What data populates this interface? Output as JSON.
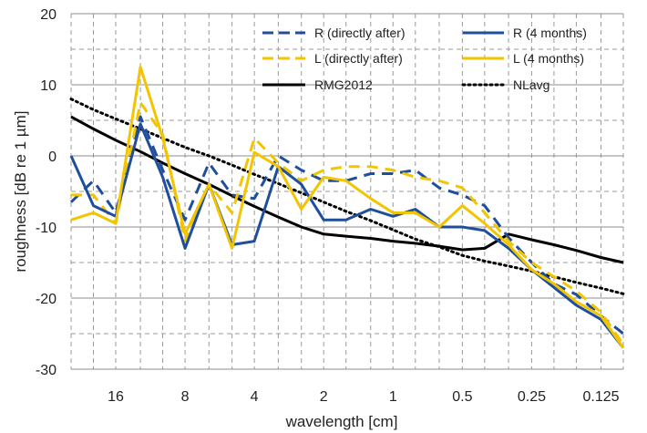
{
  "chart_data": {
    "type": "line",
    "xlabel": "wavelength [cm]",
    "ylabel": "roughness [dB re 1 µm]",
    "ylim": [
      -30,
      20
    ],
    "yticks": [
      20,
      10,
      0,
      -10,
      -20,
      -30
    ],
    "x_scale": "log",
    "x_direction": "decreasing",
    "xlim": [
      25,
      0.1
    ],
    "xtick_labels": [
      "16",
      "8",
      "4",
      "2",
      "1",
      "0.5",
      "0.25",
      "0.125"
    ],
    "xticks": [
      16,
      8,
      4,
      2,
      1,
      0.5,
      0.25,
      0.125
    ],
    "x": [
      25,
      20,
      16,
      12.5,
      10,
      8,
      6.3,
      5,
      4,
      3.15,
      2.5,
      2,
      1.6,
      1.25,
      1,
      0.8,
      0.63,
      0.5,
      0.4,
      0.315,
      0.25,
      0.2,
      0.16,
      0.125,
      0.1
    ],
    "grid": {
      "horizontal_major": "solid",
      "horizontal_minor": "dashed",
      "vertical": "dashed"
    },
    "legend_position": "top-right",
    "series": [
      {
        "name": "R (directly after)",
        "color": "#1F4E9C",
        "style": "dashed",
        "values": [
          -6.5,
          -3.5,
          -8,
          5.5,
          -2,
          -9,
          -1,
          -5.5,
          -6,
          0,
          -2,
          -3.5,
          -3.5,
          -2.5,
          -2.5,
          -2,
          -4.5,
          -5.5,
          -7,
          -11.5,
          -15,
          -18,
          -19.5,
          -22.5,
          -25
        ]
      },
      {
        "name": "R (4 months)",
        "color": "#1F4E9C",
        "style": "solid",
        "values": [
          0,
          -7,
          -8.5,
          4.5,
          -3,
          -13,
          -4,
          -12.5,
          -12,
          -1.5,
          -4,
          -9,
          -9,
          -7.5,
          -8.5,
          -7.5,
          -10,
          -10,
          -10.5,
          -13,
          -16,
          -18.5,
          -21,
          -23,
          -27
        ]
      },
      {
        "name": "L (directly after)",
        "color": "#F2C500",
        "style": "dashed",
        "values": [
          -5.5,
          -5.5,
          -9.5,
          7.5,
          3,
          -12,
          -4,
          -8,
          2.5,
          -1,
          -3.5,
          -2,
          -1.5,
          -1.5,
          -2,
          -3,
          -3.5,
          -4.5,
          -8,
          -12,
          -15,
          -17,
          -19,
          -22,
          -26.5
        ]
      },
      {
        "name": "L (4 months)",
        "color": "#F2C500",
        "style": "solid",
        "values": [
          -9,
          -8,
          -9.5,
          12.5,
          2.5,
          -11,
          -4,
          -13,
          0.5,
          -1.5,
          -7.5,
          -3,
          -3.5,
          -6,
          -8,
          -8,
          -10,
          -7,
          -9.5,
          -12.5,
          -16,
          -18,
          -20.5,
          -22.5,
          -27
        ]
      },
      {
        "name": "RMG2012",
        "color": "#000000",
        "style": "solid",
        "values": [
          5.5,
          3.8,
          2.2,
          0.6,
          -1,
          -2.5,
          -4,
          -5.6,
          -7.1,
          -8.6,
          -10,
          -11,
          -11.3,
          -11.6,
          -12,
          -12.3,
          -12.7,
          -13.2,
          -13,
          -11,
          -11.8,
          -12.5,
          -13.3,
          -14.3,
          -15
        ]
      },
      {
        "name": "NLavg",
        "color": "#000000",
        "style": "dotted",
        "values": [
          8,
          6.5,
          5.2,
          3.8,
          2.5,
          1.2,
          0,
          -1.3,
          -2.6,
          -3.9,
          -5.2,
          -6.5,
          -7.8,
          -9.1,
          -10.4,
          -11.7,
          -12.8,
          -14,
          -14.8,
          -15.5,
          -16.2,
          -17,
          -17.8,
          -18.6,
          -19.4
        ]
      }
    ]
  }
}
